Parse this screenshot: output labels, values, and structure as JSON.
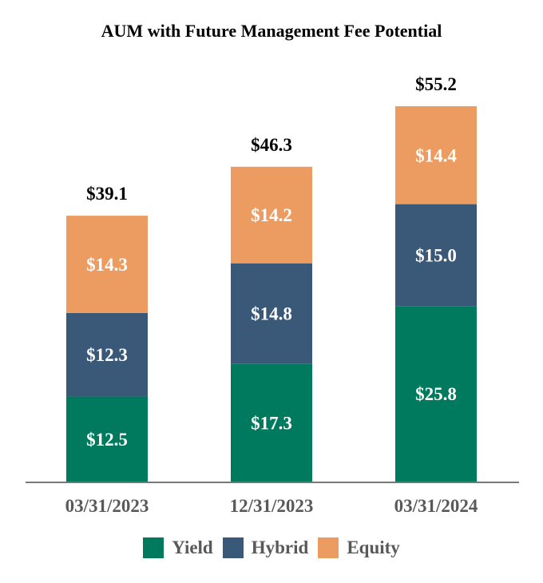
{
  "chart_data": {
    "type": "bar",
    "stacked": true,
    "title": "AUM with Future Management Fee Potential",
    "categories": [
      "03/31/2023",
      "12/31/2023",
      "03/31/2024"
    ],
    "series": [
      {
        "name": "Yield",
        "color": "#007A5E",
        "values": [
          12.5,
          17.3,
          25.8
        ],
        "labels": [
          "$12.5",
          "$17.3",
          "$25.8"
        ]
      },
      {
        "name": "Hybrid",
        "color": "#3A5878",
        "values": [
          12.3,
          14.8,
          15.0
        ],
        "labels": [
          "$12.3",
          "$14.8",
          "$15.0"
        ]
      },
      {
        "name": "Equity",
        "color": "#EC9C61",
        "values": [
          14.3,
          14.2,
          14.4
        ],
        "labels": [
          "$14.3",
          "$14.2",
          "$14.4"
        ]
      }
    ],
    "totals": [
      39.1,
      46.3,
      55.2
    ],
    "total_labels": [
      "$39.1",
      "$46.3",
      "$55.2"
    ],
    "ylim": [
      0,
      55.2
    ],
    "grid": false,
    "legend": "bottom"
  }
}
